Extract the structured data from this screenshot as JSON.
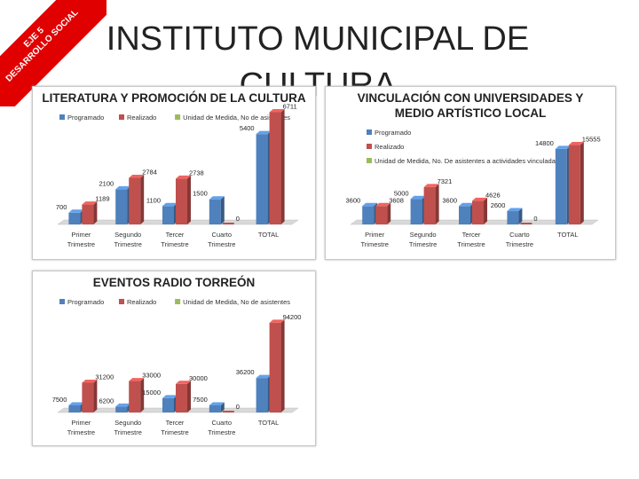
{
  "slide": {
    "title": "INSTITUTO MUNICIPAL DE CULTURA",
    "ribbon_line1": "EJE 5",
    "ribbon_line2": "DESARROLLO SOCIAL"
  },
  "colors": {
    "programado": "#4f81bd",
    "realizado": "#c0504d",
    "unidad": "#9bbb59",
    "ribbon": "#e00000"
  },
  "chart_data": [
    {
      "type": "bar",
      "title": "LITERATURA Y PROMOCIÓN DE LA CULTURA",
      "categories": [
        "Primer Trimestre",
        "Segundo Trimestre",
        "Tercer Trimestre",
        "Cuarto Trimestre",
        "TOTAL"
      ],
      "series": [
        {
          "name": "Programado",
          "values": [
            700,
            2100,
            1100,
            1500,
            5400
          ],
          "labels": [
            "700",
            "2100",
            "1100",
            "1500",
            "5400"
          ]
        },
        {
          "name": "Realizado",
          "values": [
            1189,
            2784,
            2738,
            0,
            6711
          ],
          "labels": [
            "1189",
            "2784",
            "2738",
            "0",
            "6711"
          ]
        },
        {
          "name": "Unidad de Medida, No de asistentes",
          "values": [
            null,
            null,
            null,
            null,
            null
          ],
          "labels": [
            "",
            "",
            "",
            "",
            ""
          ]
        }
      ],
      "ylim": [
        0,
        7000
      ],
      "legend": "top",
      "grid": false
    },
    {
      "type": "bar",
      "title": "VINCULACIÓN CON UNIVERSIDADES Y MEDIO ARTÍSTICO LOCAL",
      "categories": [
        "Primer Trimestre",
        "Segundo Trimestre",
        "Tercer Trimestre",
        "Cuarto Trimestre",
        "TOTAL"
      ],
      "series": [
        {
          "name": "Programado",
          "values": [
            3600,
            5000,
            3600,
            2600,
            14800
          ],
          "labels": [
            "3600",
            "5000",
            "3600",
            "2600",
            "14800"
          ]
        },
        {
          "name": "Realizado",
          "values": [
            3608,
            7321,
            4626,
            0,
            15555
          ],
          "labels": [
            "3608",
            "7321",
            "4626",
            "0",
            "15555"
          ]
        },
        {
          "name": "Unidad de Medida, No. De asistentes a actividades vinculadas",
          "values": [
            null,
            null,
            null,
            null,
            null
          ],
          "labels": [
            "",
            "",
            "",
            "",
            ""
          ]
        }
      ],
      "ylim": [
        0,
        16000
      ],
      "legend": "left",
      "grid": false
    },
    {
      "type": "bar",
      "title": "EVENTOS RADIO TORREÓN",
      "categories": [
        "Primer Trimestre",
        "Segundo Trimestre",
        "Tercer Trimestre",
        "Cuarto Trimestre",
        "TOTAL"
      ],
      "series": [
        {
          "name": "Programado",
          "values": [
            7500,
            6200,
            15000,
            7500,
            36200
          ],
          "labels": [
            "7500",
            "6200",
            "15000",
            "7500",
            "36200"
          ]
        },
        {
          "name": "Realizado",
          "values": [
            31200,
            33000,
            30000,
            0,
            94200
          ],
          "labels": [
            "31200",
            "33000",
            "30000",
            "0",
            "94200"
          ]
        },
        {
          "name": "Unidad de Medida, No de asistentes",
          "values": [
            null,
            null,
            null,
            null,
            null
          ],
          "labels": [
            "",
            "",
            "",
            "",
            ""
          ]
        }
      ],
      "ylim": [
        0,
        95000
      ],
      "legend": "top",
      "grid": false
    }
  ]
}
